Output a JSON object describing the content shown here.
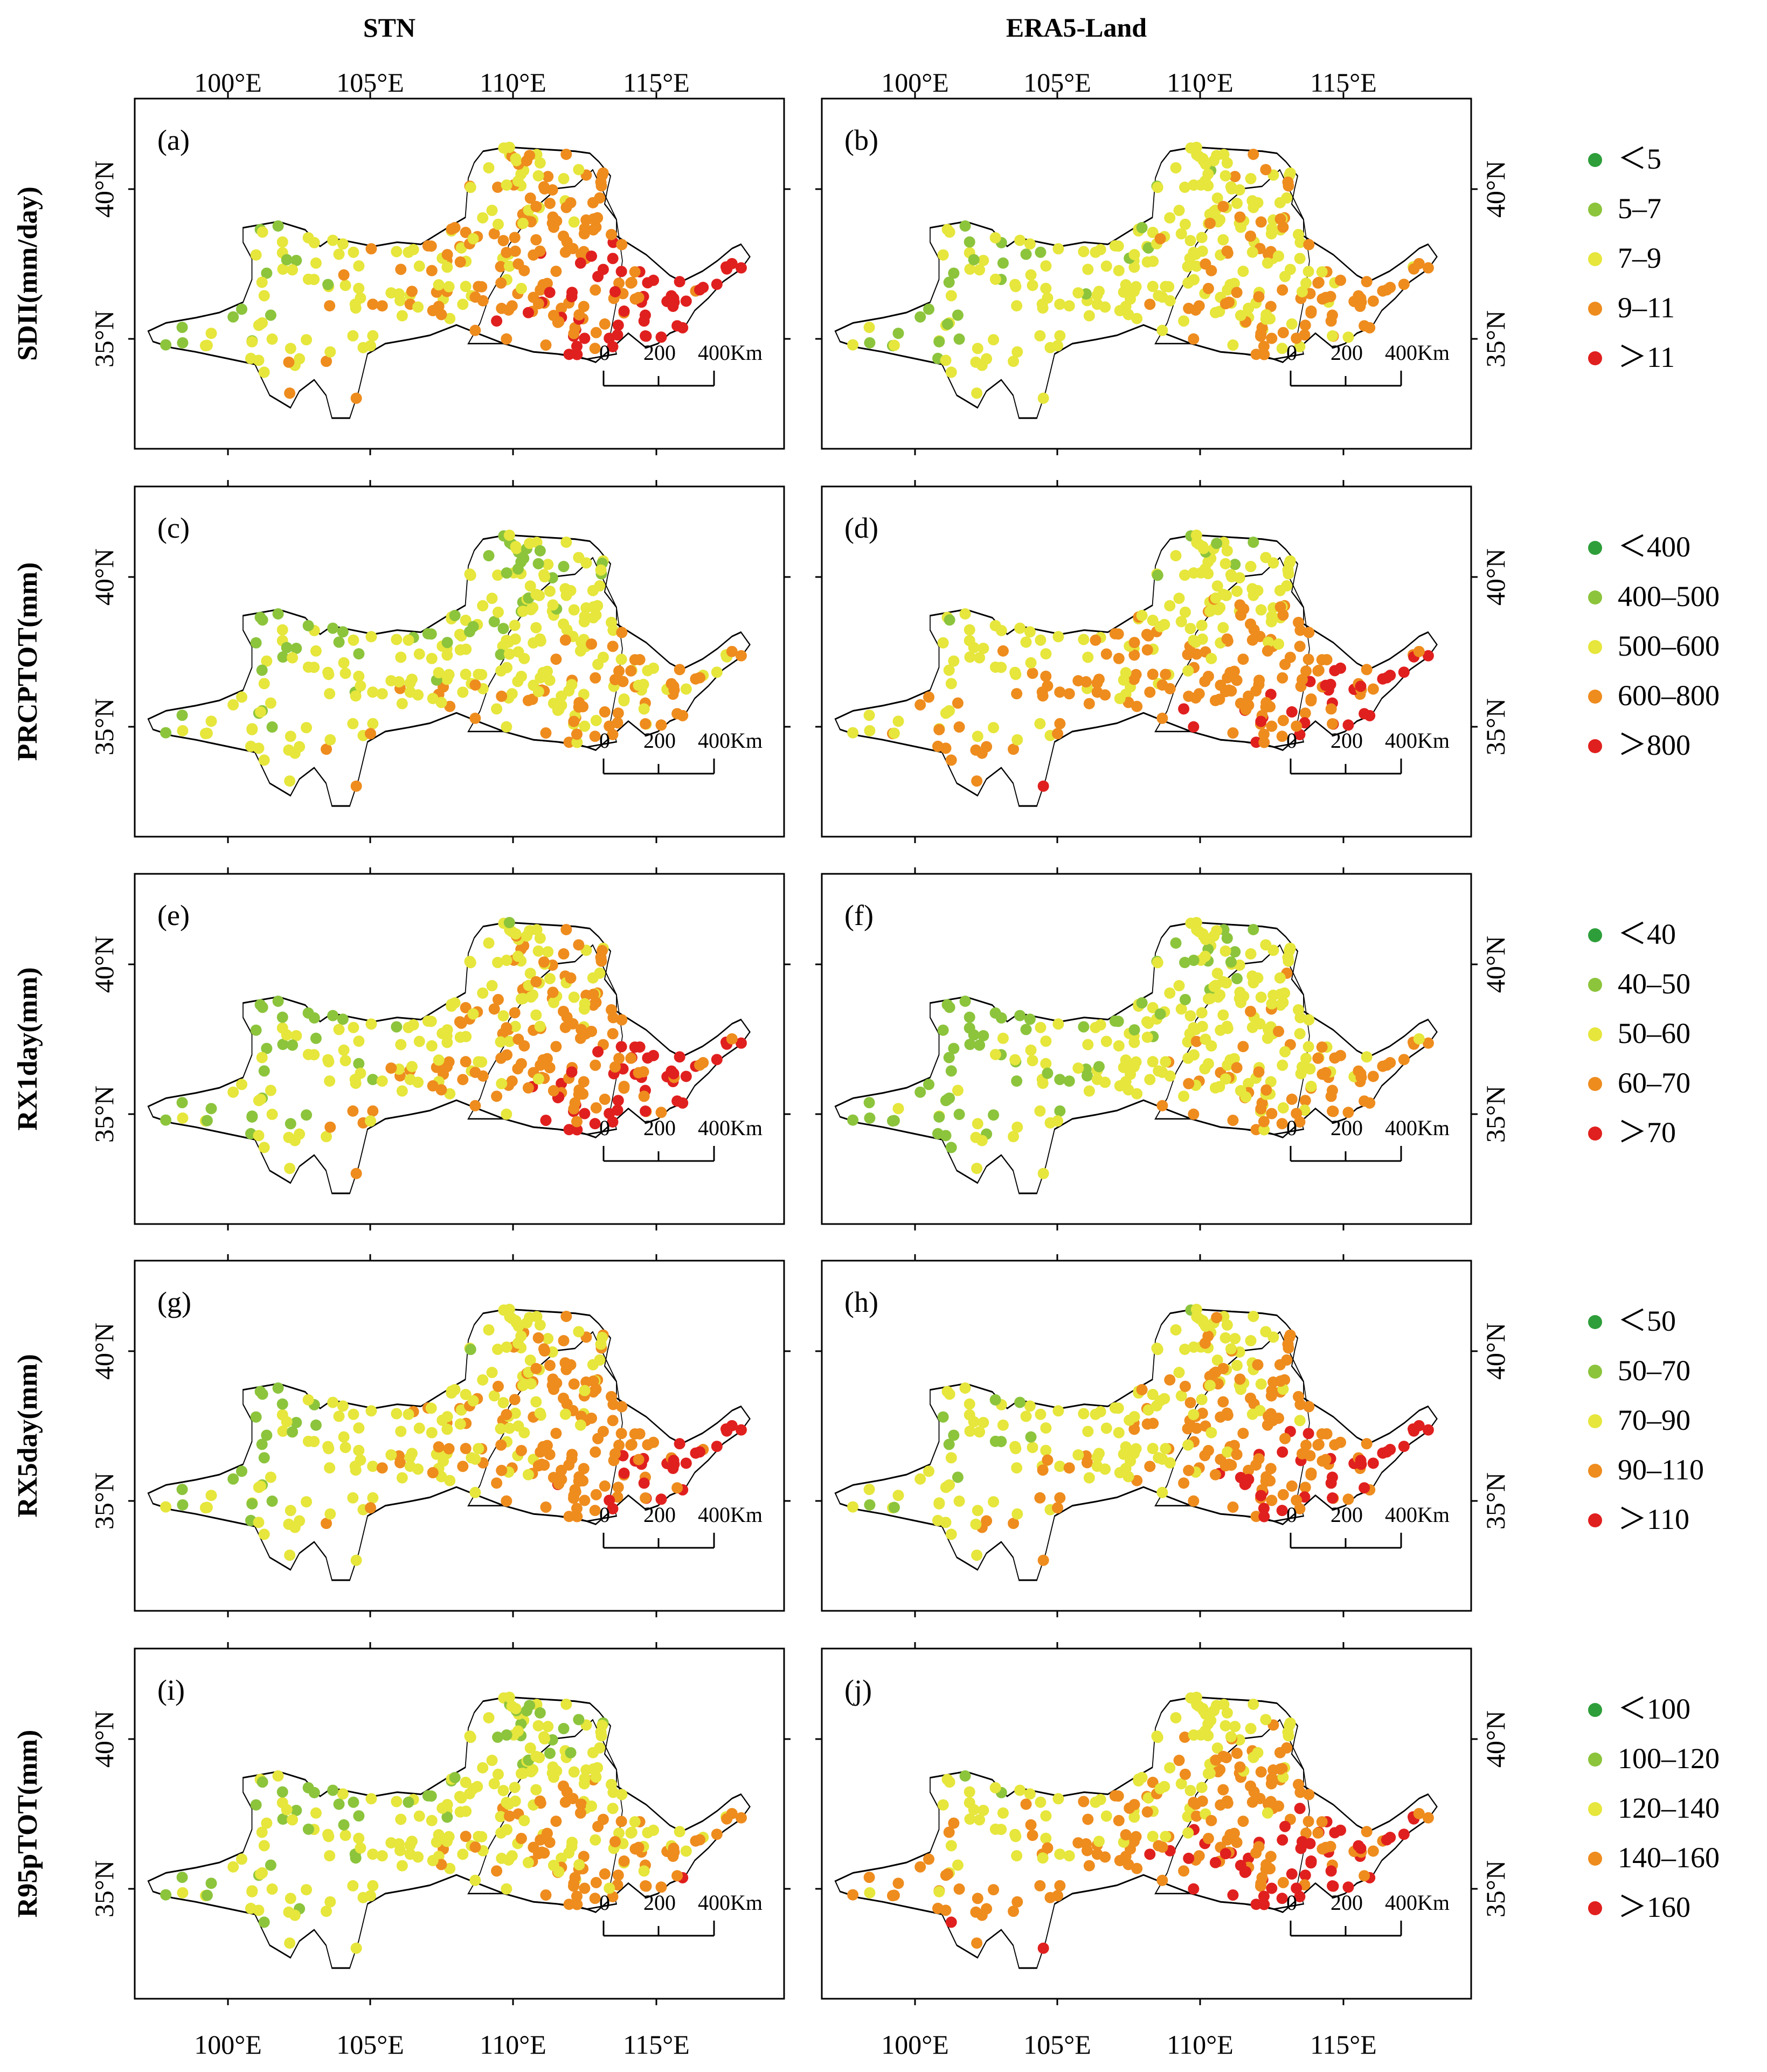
{
  "figure": {
    "column_titles": [
      "STN",
      "ERA5-Land"
    ],
    "lon_ticks": [
      "100°E",
      "105°E",
      "110°E",
      "115°E"
    ],
    "lat_ticks": [
      "40°N",
      "35°N"
    ],
    "scale_bar": {
      "labels": [
        "0",
        "200",
        "400Km"
      ]
    },
    "rows": [
      {
        "label": "SDII(mm/day)",
        "panels": [
          "(a)",
          "(b)"
        ],
        "legend": [
          "＜5",
          "5–7",
          "7–9",
          "9–11",
          "＞11"
        ]
      },
      {
        "label": "PRCPTOT(mm)",
        "panels": [
          "(c)",
          "(d)"
        ],
        "legend": [
          "＜400",
          "400–500",
          "500–600",
          "600–800",
          "＞800"
        ]
      },
      {
        "label": "RX1day(mm)",
        "panels": [
          "(e)",
          "(f)"
        ],
        "legend": [
          "＜40",
          "40–50",
          "50–60",
          "60–70",
          "＞70"
        ]
      },
      {
        "label": "RX5day(mm)",
        "panels": [
          "(g)",
          "(h)"
        ],
        "legend": [
          "＜50",
          "50–70",
          "70–90",
          "90–110",
          "＞110"
        ]
      },
      {
        "label": "R95pTOT(mm)",
        "panels": [
          "(i)",
          "(j)"
        ],
        "legend": [
          "＜100",
          "100–120",
          "120–140",
          "140–160",
          "＞160"
        ]
      }
    ],
    "class_colors": [
      "#2e9e3a",
      "#8cc43c",
      "#e6e63c",
      "#ee8c1e",
      "#e0201e"
    ]
  }
}
